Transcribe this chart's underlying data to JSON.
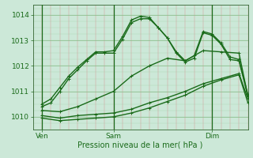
{
  "title": "",
  "xlabel": "Pression niveau de la mer( hPa )",
  "ylabel": "",
  "bg_color": "#cce8d8",
  "line_color": "#1a6b1a",
  "ylim": [
    1009.5,
    1014.4
  ],
  "xlim": [
    0,
    48
  ],
  "xtick_positions": [
    2,
    18,
    40
  ],
  "xtick_labels": [
    "Ven",
    "Sam",
    "Dim"
  ],
  "ytick_positions": [
    1010,
    1011,
    1012,
    1013,
    1014
  ],
  "ytick_labels": [
    "1010",
    "1011",
    "1012",
    "1013",
    "1014"
  ],
  "vline_positions": [
    2,
    18,
    40
  ],
  "series": [
    {
      "x": [
        2,
        4,
        6,
        8,
        10,
        12,
        14,
        16,
        18,
        20,
        22,
        24,
        26,
        28,
        30,
        32,
        34,
        36,
        38,
        40,
        42,
        44,
        46,
        48
      ],
      "y": [
        1010.4,
        1010.55,
        1011.0,
        1011.5,
        1011.85,
        1012.2,
        1012.5,
        1012.5,
        1012.5,
        1013.05,
        1013.7,
        1013.85,
        1013.85,
        1013.5,
        1013.1,
        1012.5,
        1012.15,
        1012.3,
        1013.3,
        1013.2,
        1012.85,
        1012.25,
        1012.2,
        1010.8
      ]
    },
    {
      "x": [
        2,
        4,
        6,
        8,
        10,
        12,
        14,
        16,
        18,
        20,
        22,
        24,
        26,
        28,
        30,
        32,
        34,
        36,
        38,
        40,
        42,
        44,
        46,
        48
      ],
      "y": [
        1010.5,
        1010.7,
        1011.15,
        1011.6,
        1011.95,
        1012.25,
        1012.55,
        1012.55,
        1012.6,
        1013.15,
        1013.8,
        1013.95,
        1013.9,
        1013.5,
        1013.1,
        1012.55,
        1012.2,
        1012.4,
        1013.35,
        1013.25,
        1012.9,
        1012.35,
        1012.25,
        1010.85
      ]
    },
    {
      "x": [
        2,
        6,
        10,
        14,
        18,
        22,
        26,
        30,
        34,
        38,
        42,
        46,
        48
      ],
      "y": [
        1010.05,
        1009.95,
        1010.05,
        1010.1,
        1010.15,
        1010.3,
        1010.55,
        1010.75,
        1011.0,
        1011.3,
        1011.5,
        1011.7,
        1010.7
      ]
    },
    {
      "x": [
        2,
        6,
        10,
        14,
        18,
        22,
        26,
        30,
        34,
        38,
        42,
        46,
        48
      ],
      "y": [
        1009.95,
        1009.85,
        1009.9,
        1009.95,
        1010.0,
        1010.15,
        1010.35,
        1010.6,
        1010.85,
        1011.2,
        1011.45,
        1011.65,
        1010.55
      ]
    },
    {
      "x": [
        2,
        6,
        10,
        14,
        18,
        22,
        26,
        30,
        34,
        38,
        42,
        46,
        48
      ],
      "y": [
        1010.25,
        1010.2,
        1010.4,
        1010.7,
        1011.0,
        1011.6,
        1012.0,
        1012.3,
        1012.2,
        1012.6,
        1012.55,
        1012.5,
        1010.8
      ]
    }
  ]
}
